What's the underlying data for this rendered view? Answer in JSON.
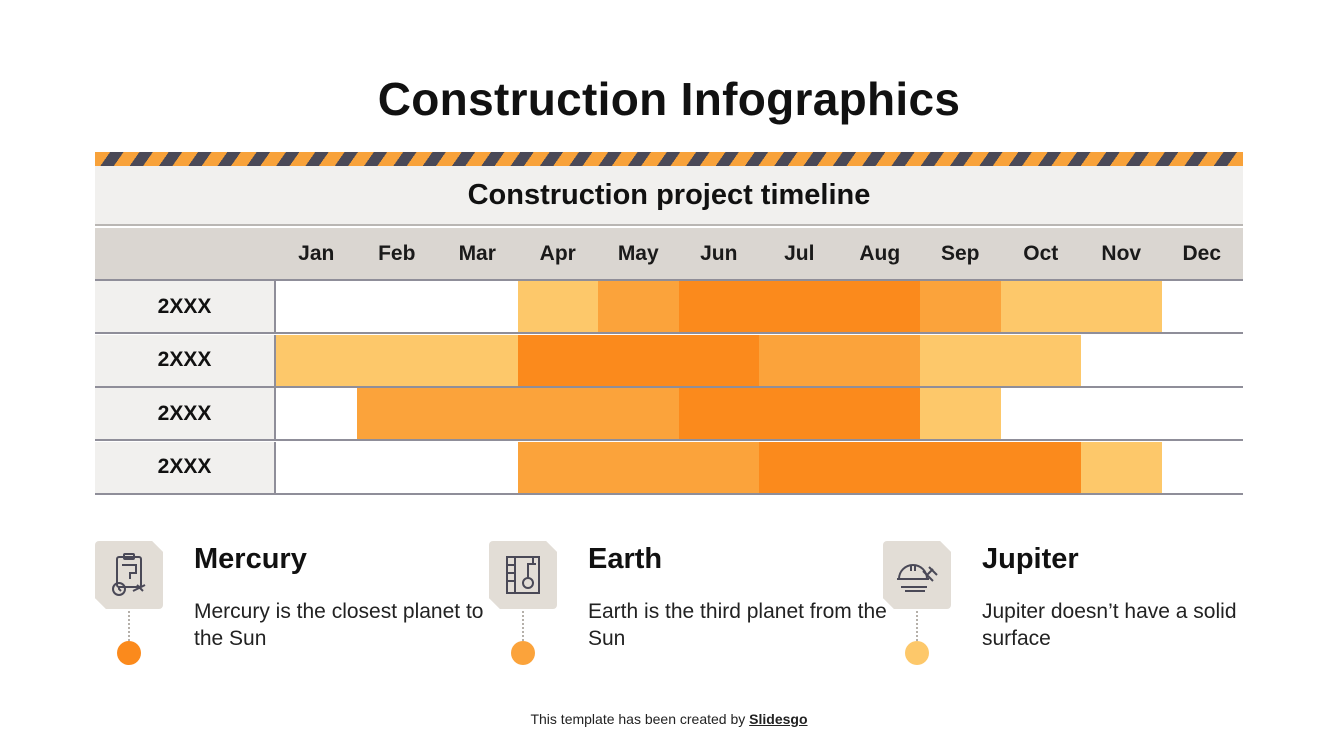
{
  "title": "Construction Infographics",
  "timeline": {
    "heading": "Construction project timeline",
    "months": [
      "Jan",
      "Feb",
      "Mar",
      "Apr",
      "May",
      "Jun",
      "Jul",
      "Aug",
      "Sep",
      "Oct",
      "Nov",
      "Dec"
    ],
    "colors": {
      "light": "#fdc86a",
      "medium": "#fba33b",
      "dark": "#fb8a1c",
      "empty": "#ffffff"
    },
    "rows": [
      {
        "label": "2XXX",
        "cells": [
          "empty",
          "empty",
          "empty",
          "light",
          "medium",
          "dark",
          "dark",
          "dark",
          "medium",
          "light",
          "light",
          "empty"
        ]
      },
      {
        "label": "2XXX",
        "cells": [
          "light",
          "light",
          "light",
          "dark",
          "dark",
          "dark",
          "medium",
          "medium",
          "light",
          "light",
          "empty",
          "empty"
        ]
      },
      {
        "label": "2XXX",
        "cells": [
          "empty",
          "medium",
          "medium",
          "medium",
          "medium",
          "dark",
          "dark",
          "dark",
          "light",
          "empty",
          "empty",
          "empty"
        ]
      },
      {
        "label": "2XXX",
        "cells": [
          "empty",
          "empty",
          "empty",
          "medium",
          "medium",
          "medium",
          "dark",
          "dark",
          "dark",
          "dark",
          "light",
          "empty"
        ]
      }
    ]
  },
  "items": [
    {
      "title": "Mercury",
      "text": "Mercury is the closest planet to the Sun",
      "icon": "clipboard-plans-icon",
      "dot_color": "#fb8a1c"
    },
    {
      "title": "Earth",
      "text": "Earth is the third planet from the Sun",
      "icon": "ruler-blueprint-icon",
      "dot_color": "#fba33b"
    },
    {
      "title": "Jupiter",
      "text": "Jupiter doesn’t have a solid surface",
      "icon": "helmet-hammer-icon",
      "dot_color": "#fdc86a"
    }
  ],
  "footer": {
    "prefix": "This template has been created by ",
    "brand": "Slidesgo"
  }
}
